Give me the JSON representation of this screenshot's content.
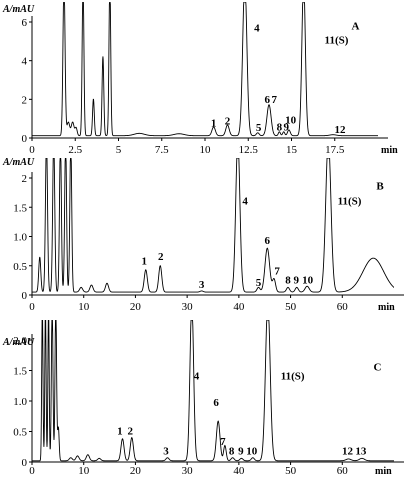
{
  "chart_data": [
    {
      "id": "A",
      "type": "line",
      "panel_label": "A",
      "ylabel": "A/mAU",
      "xlabel": "min",
      "xlim": [
        0,
        20
      ],
      "ylim": [
        0,
        6
      ],
      "xticks": [
        0,
        2.5,
        5,
        7.5,
        10,
        12.5,
        15,
        17.5
      ],
      "xticklabels": [
        "0",
        "2.5",
        "5",
        "7.5",
        "10",
        "12.5",
        "15",
        "17.5"
      ],
      "yticks": [
        0,
        2,
        4,
        6
      ],
      "baseline": 0.12,
      "peaks": [
        {
          "t": 1.85,
          "h": 8.0,
          "w": 0.06
        },
        {
          "t": 2.1,
          "h": 0.7,
          "w": 0.08
        },
        {
          "t": 2.35,
          "h": 0.7,
          "w": 0.08
        },
        {
          "t": 2.55,
          "h": 0.4,
          "w": 0.06
        },
        {
          "t": 2.95,
          "h": 8.0,
          "w": 0.05
        },
        {
          "t": 3.55,
          "h": 1.9,
          "w": 0.05
        },
        {
          "t": 4.1,
          "h": 4.1,
          "w": 0.05
        },
        {
          "t": 4.5,
          "h": 8.0,
          "w": 0.05
        },
        {
          "t": 6.2,
          "h": 0.12,
          "w": 0.3
        },
        {
          "t": 8.5,
          "h": 0.1,
          "w": 0.3
        },
        {
          "t": 10.5,
          "h": 0.45,
          "w": 0.1
        },
        {
          "t": 11.3,
          "h": 0.55,
          "w": 0.1
        },
        {
          "t": 12.3,
          "h": 8.0,
          "w": 0.12
        },
        {
          "t": 13.05,
          "h": 0.15,
          "w": 0.08
        },
        {
          "t": 13.7,
          "h": 1.6,
          "w": 0.12
        },
        {
          "t": 14.3,
          "h": 0.2,
          "w": 0.06
        },
        {
          "t": 14.55,
          "h": 0.2,
          "w": 0.06
        },
        {
          "t": 14.85,
          "h": 0.3,
          "w": 0.08
        },
        {
          "t": 15.7,
          "h": 8.0,
          "w": 0.1
        },
        {
          "t": 17.4,
          "h": 0.05,
          "w": 0.2
        }
      ],
      "peak_labels": [
        {
          "text": "1",
          "t": 10.5,
          "y": 0.6
        },
        {
          "text": "2",
          "t": 11.3,
          "y": 0.7
        },
        {
          "text": "4",
          "t": 13.0,
          "y": 5.5
        },
        {
          "text": "5",
          "t": 13.1,
          "y": 0.35
        },
        {
          "text": "6",
          "t": 13.6,
          "y": 1.8
        },
        {
          "text": "7",
          "t": 14.0,
          "y": 1.8
        },
        {
          "text": "8",
          "t": 14.3,
          "y": 0.4
        },
        {
          "text": "9",
          "t": 14.7,
          "y": 0.4
        },
        {
          "text": "10",
          "t": 14.95,
          "y": 0.75
        },
        {
          "text": "11(S)",
          "t": 17.6,
          "y": 4.9
        },
        {
          "text": "12",
          "t": 17.8,
          "y": 0.25
        }
      ]
    },
    {
      "id": "B",
      "type": "line",
      "panel_label": "B",
      "ylabel": "A/mAU",
      "xlabel": "min",
      "xlim": [
        0,
        70
      ],
      "ylim": [
        0,
        2
      ],
      "xticks": [
        0,
        10,
        20,
        30,
        40,
        50,
        60
      ],
      "xticklabels": [
        "0",
        "10",
        "20",
        "30",
        "40",
        "50",
        "60"
      ],
      "yticks": [
        0,
        0.5,
        1.0,
        1.5,
        2.0
      ],
      "yticklabels": [
        "0",
        "0.5",
        "1.0",
        "1.5",
        "2"
      ],
      "baseline": 0.05,
      "peaks": [
        {
          "t": 1.5,
          "h": 0.6,
          "w": 0.2
        },
        {
          "t": 2.8,
          "h": 2.6,
          "w": 0.2
        },
        {
          "t": 4.2,
          "h": 2.6,
          "w": 0.2
        },
        {
          "t": 5.5,
          "h": 2.6,
          "w": 0.18
        },
        {
          "t": 6.5,
          "h": 2.6,
          "w": 0.18
        },
        {
          "t": 7.5,
          "h": 2.6,
          "w": 0.18
        },
        {
          "t": 9.5,
          "h": 0.08,
          "w": 0.3
        },
        {
          "t": 11.5,
          "h": 0.12,
          "w": 0.3
        },
        {
          "t": 14.5,
          "h": 0.15,
          "w": 0.3
        },
        {
          "t": 22.0,
          "h": 0.38,
          "w": 0.3
        },
        {
          "t": 24.8,
          "h": 0.45,
          "w": 0.3
        },
        {
          "t": 32.8,
          "h": 0.02,
          "w": 0.3
        },
        {
          "t": 39.8,
          "h": 2.6,
          "w": 0.4
        },
        {
          "t": 43.8,
          "h": 0.08,
          "w": 0.3
        },
        {
          "t": 45.5,
          "h": 0.75,
          "w": 0.45
        },
        {
          "t": 46.8,
          "h": 0.22,
          "w": 0.3
        },
        {
          "t": 49.5,
          "h": 0.08,
          "w": 0.3
        },
        {
          "t": 51.2,
          "h": 0.08,
          "w": 0.3
        },
        {
          "t": 53.2,
          "h": 0.1,
          "w": 0.4
        },
        {
          "t": 57.3,
          "h": 2.6,
          "w": 0.5
        },
        {
          "t": 66.0,
          "h": 0.58,
          "w": 2.0
        }
      ],
      "peak_labels": [
        {
          "text": "1",
          "t": 21.7,
          "y": 0.52
        },
        {
          "text": "2",
          "t": 24.9,
          "y": 0.6
        },
        {
          "text": "3",
          "t": 32.8,
          "y": 0.12
        },
        {
          "text": "4",
          "t": 41.2,
          "y": 1.55
        },
        {
          "text": "5",
          "t": 43.8,
          "y": 0.15
        },
        {
          "text": "6",
          "t": 45.5,
          "y": 0.87
        },
        {
          "text": "7",
          "t": 47.4,
          "y": 0.35
        },
        {
          "text": "8",
          "t": 49.5,
          "y": 0.2
        },
        {
          "text": "9",
          "t": 51.1,
          "y": 0.2
        },
        {
          "text": "10",
          "t": 53.3,
          "y": 0.2
        },
        {
          "text": "11(S)",
          "t": 61.4,
          "y": 1.55
        },
        {
          "text": "B",
          "t": 67.3,
          "y": 1.8,
          "panel": true
        }
      ]
    },
    {
      "id": "C",
      "type": "line",
      "panel_label": "C",
      "ylabel": "A/mAU",
      "xlabel": "min",
      "xlim": [
        0,
        70
      ],
      "ylim": [
        0,
        2
      ],
      "xticks": [
        0,
        10,
        20,
        30,
        40,
        50,
        60
      ],
      "xticklabels": [
        "0",
        "10",
        "20",
        "30",
        "40",
        "50",
        "60"
      ],
      "yticks": [
        0,
        0.5,
        1.0,
        1.5,
        2.0
      ],
      "yticklabels": [
        "0",
        "0.5",
        "1.0",
        "1.5",
        "2.0"
      ],
      "baseline": 0.02,
      "peaks": [
        {
          "t": 2.0,
          "h": 2.6,
          "w": 0.12
        },
        {
          "t": 2.6,
          "h": 2.6,
          "w": 0.12
        },
        {
          "t": 3.2,
          "h": 2.6,
          "w": 0.12
        },
        {
          "t": 3.9,
          "h": 2.6,
          "w": 0.15
        },
        {
          "t": 4.6,
          "h": 2.6,
          "w": 0.15
        },
        {
          "t": 5.1,
          "h": 0.55,
          "w": 0.15
        },
        {
          "t": 7.5,
          "h": 0.05,
          "w": 0.3
        },
        {
          "t": 8.8,
          "h": 0.08,
          "w": 0.3
        },
        {
          "t": 10.8,
          "h": 0.1,
          "w": 0.3
        },
        {
          "t": 13.0,
          "h": 0.04,
          "w": 0.3
        },
        {
          "t": 17.5,
          "h": 0.36,
          "w": 0.3
        },
        {
          "t": 19.3,
          "h": 0.38,
          "w": 0.3
        },
        {
          "t": 26.2,
          "h": 0.05,
          "w": 0.3
        },
        {
          "t": 30.9,
          "h": 2.6,
          "w": 0.35
        },
        {
          "t": 36.0,
          "h": 0.65,
          "w": 0.35
        },
        {
          "t": 37.3,
          "h": 0.25,
          "w": 0.25
        },
        {
          "t": 38.8,
          "h": 0.05,
          "w": 0.3
        },
        {
          "t": 40.5,
          "h": 0.04,
          "w": 0.3
        },
        {
          "t": 42.7,
          "h": 0.05,
          "w": 0.3
        },
        {
          "t": 45.6,
          "h": 2.6,
          "w": 0.45
        },
        {
          "t": 61.2,
          "h": 0.03,
          "w": 0.5
        },
        {
          "t": 63.8,
          "h": 0.04,
          "w": 0.5
        }
      ],
      "peak_labels": [
        {
          "text": "1",
          "t": 17.0,
          "y": 0.45
        },
        {
          "text": "2",
          "t": 19.0,
          "y": 0.45
        },
        {
          "text": "3",
          "t": 25.9,
          "y": 0.12
        },
        {
          "text": "4",
          "t": 31.8,
          "y": 1.35
        },
        {
          "text": "6",
          "t": 35.6,
          "y": 0.92
        },
        {
          "text": "7",
          "t": 36.9,
          "y": 0.28
        },
        {
          "text": "8",
          "t": 38.6,
          "y": 0.12
        },
        {
          "text": "9",
          "t": 40.4,
          "y": 0.12
        },
        {
          "text": "10",
          "t": 42.5,
          "y": 0.12
        },
        {
          "text": "11(S)",
          "t": 50.4,
          "y": 1.35
        },
        {
          "text": "12",
          "t": 61.0,
          "y": 0.12
        },
        {
          "text": "13",
          "t": 63.6,
          "y": 0.12
        },
        {
          "text": "C",
          "t": 66.8,
          "y": 1.5,
          "panel": true
        }
      ]
    }
  ]
}
